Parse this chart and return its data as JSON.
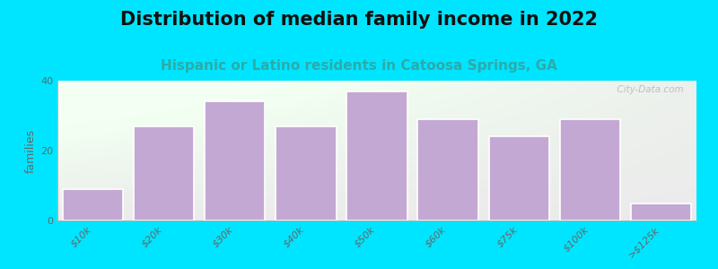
{
  "title": "Distribution of median family income in 2022",
  "subtitle": "Hispanic or Latino residents in Catoosa Springs, GA",
  "categories": [
    "$10k",
    "$20k",
    "$30k",
    "$40k",
    "$50k",
    "$60k",
    "$75k",
    "$100k",
    ">$125k"
  ],
  "values": [
    9,
    27,
    34,
    27,
    37,
    29,
    24,
    29,
    5
  ],
  "bar_color": "#c4a8d4",
  "bar_edge_color": "#ffffff",
  "background_outer": "#00e5ff",
  "background_inner_topleft": "#d8eeda",
  "background_inner_topright": "#eef5ee",
  "background_inner_bottom": "#f8f8fa",
  "ylabel": "families",
  "ylim": [
    0,
    40
  ],
  "yticks": [
    0,
    20,
    40
  ],
  "title_fontsize": 15,
  "subtitle_fontsize": 11,
  "subtitle_color": "#2daaaa",
  "title_color": "#111111",
  "watermark": "  City-Data.com",
  "tick_label_color": "#666666",
  "tick_fontsize": 8
}
